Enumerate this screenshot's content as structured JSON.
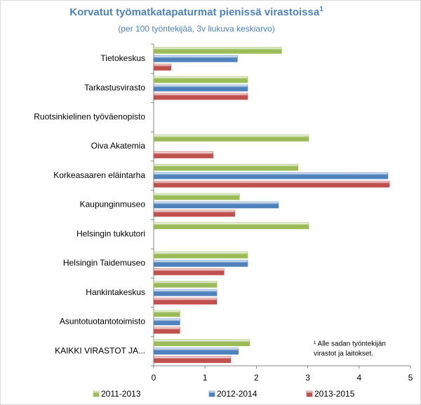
{
  "chart_data": {
    "type": "hbar",
    "title": "Korvatut työmatkatapaturmat pienissä virastoissa",
    "title_marker": "1",
    "subtitle": "(per 100 työntekijää, 3v liukuva keskiarvo)",
    "footnote": [
      "¹ Alle sadan työntekijän",
      "virastot ja laitokset."
    ],
    "categories": [
      "Tietokeskus",
      "Tarkastusvirasto",
      "Ruotsinkielinen työväenopisto",
      "Oiva Akatemia",
      "Korkeasaaren eläintarha",
      "Kaupunginmuseo",
      "Helsingin tukkutori",
      "Helsingin Taidemuseo",
      "Hankintakeskus",
      "Asuntotuotantotoimisto",
      "KAIKKI VIRASTOT JA..."
    ],
    "series": [
      {
        "name": "2011-2013",
        "color": "#9bbb59",
        "values": [
          2.49,
          1.83,
          null,
          3.02,
          2.81,
          1.67,
          3.02,
          1.83,
          1.23,
          0.51,
          1.87
        ]
      },
      {
        "name": "2012-2014",
        "color": "#4f81bd",
        "values": [
          1.63,
          1.83,
          null,
          null,
          4.56,
          2.43,
          null,
          1.83,
          1.23,
          0.51,
          1.65
        ]
      },
      {
        "name": "2013-2015",
        "color": "#c0504d",
        "values": [
          0.34,
          1.83,
          null,
          1.16,
          4.59,
          1.58,
          null,
          1.37,
          1.23,
          0.51,
          1.5
        ]
      }
    ],
    "xlim": [
      0,
      5
    ],
    "xticks": [
      0,
      1,
      2,
      3,
      4,
      5
    ],
    "grid": false,
    "legend": "bottom"
  }
}
